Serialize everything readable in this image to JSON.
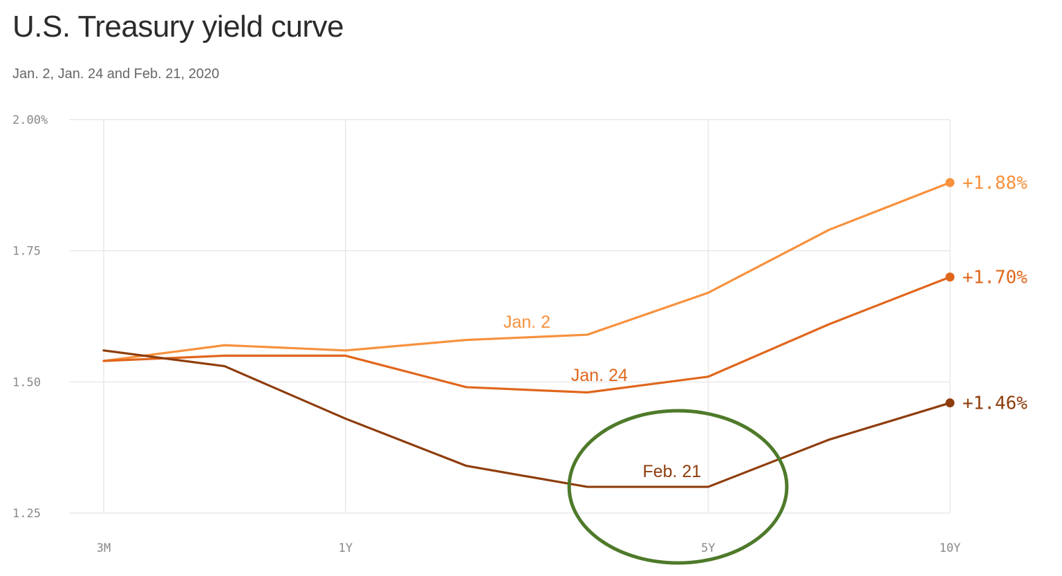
{
  "title": "U.S. Treasury yield curve",
  "subtitle": "Jan. 2, Jan. 24 and Feb. 21, 2020",
  "chart_data": {
    "type": "line",
    "x": [
      0,
      1,
      2,
      3,
      4,
      5,
      6,
      7
    ],
    "x_tick_labels": [
      {
        "x": 0,
        "label": "3M"
      },
      {
        "x": 2,
        "label": "1Y"
      },
      {
        "x": 5,
        "label": "5Y"
      },
      {
        "x": 7,
        "label": "10Y"
      }
    ],
    "y_tick_labels": [
      {
        "y": 2.0,
        "label": "2.00%"
      },
      {
        "y": 1.75,
        "label": "1.75"
      },
      {
        "y": 1.5,
        "label": "1.50"
      },
      {
        "y": 1.25,
        "label": "1.25"
      }
    ],
    "ylim": [
      1.25,
      2.0
    ],
    "grid": true,
    "series": [
      {
        "name": "Jan. 2",
        "color": "#f7913d",
        "values": [
          1.54,
          1.57,
          1.56,
          1.58,
          1.59,
          1.67,
          1.79,
          1.88
        ],
        "end_label": "+1.88%",
        "label_near_x": 3.5
      },
      {
        "name": "Jan. 24",
        "color": "#e0661c",
        "values": [
          1.54,
          1.55,
          1.55,
          1.49,
          1.48,
          1.51,
          1.61,
          1.7
        ],
        "end_label": "+1.70%",
        "label_near_x": 4.1
      },
      {
        "name": "Feb. 21",
        "color": "#8e3d0c",
        "values": [
          1.56,
          1.53,
          1.43,
          1.34,
          1.3,
          1.3,
          1.39,
          1.46
        ],
        "end_label": "+1.46%",
        "label_near_x": 4.7
      }
    ],
    "annotation": {
      "shape": "ellipse",
      "color": "#4e7a2a",
      "x_range": [
        3.85,
        5.65
      ],
      "y_range": [
        1.155,
        1.445
      ]
    }
  }
}
